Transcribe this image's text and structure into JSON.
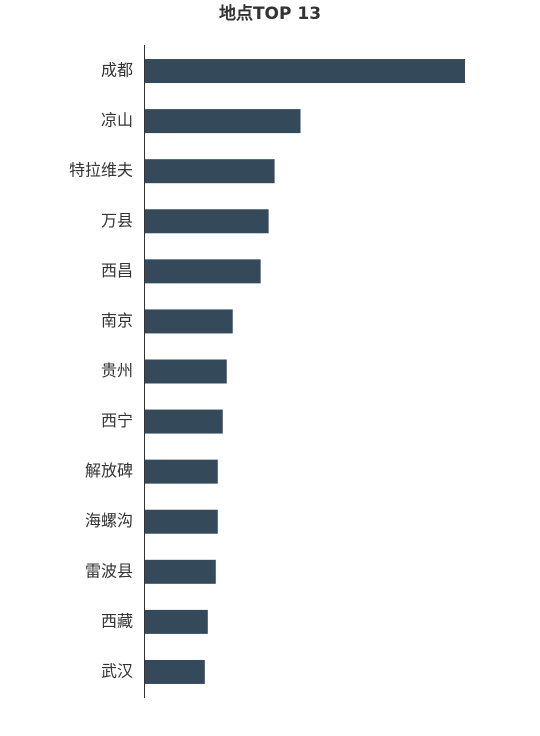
{
  "chart_data": {
    "type": "bar",
    "orientation": "horizontal",
    "title": "地点TOP 13",
    "categories": [
      "成都",
      "凉山",
      "特拉维夫",
      "万县",
      "西昌",
      "南京",
      "贵州",
      "西宁",
      "解放碑",
      "海螺沟",
      "雷波县",
      "西藏",
      "武汉"
    ],
    "values": [
      321,
      156,
      130,
      124,
      116,
      88,
      82,
      78,
      73,
      73,
      71,
      63,
      60
    ],
    "color": "#34495a"
  }
}
